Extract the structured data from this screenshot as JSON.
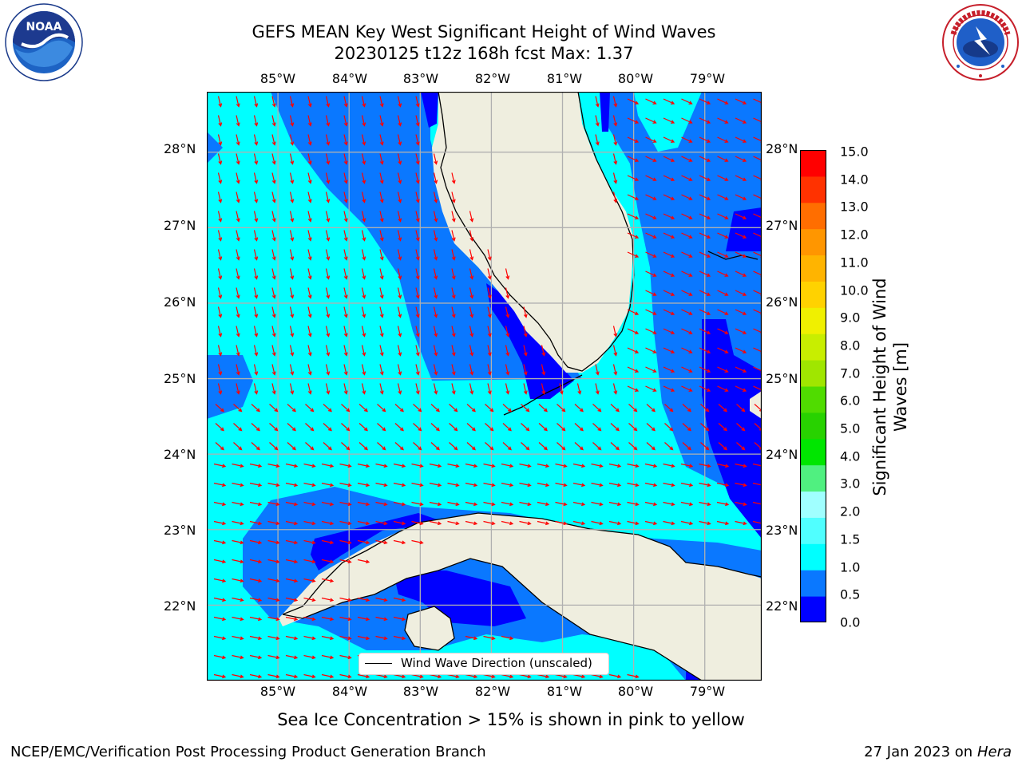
{
  "title": {
    "line1": "GEFS MEAN Key West Significant Height of Wind Waves",
    "line2": "20230125 t12z 168h fcst   Max: 1.37"
  },
  "logos": {
    "left": {
      "name": "noaa-logo",
      "text": "NOAA",
      "ring_text": "NATIONAL OCEANIC AND ATMOSPHERIC ADMINISTRATION · U.S. DEPARTMENT OF COMMERCE"
    },
    "right": {
      "name": "nws-logo",
      "ring_text": "NATIONAL WEATHER SERVICE"
    }
  },
  "axes": {
    "lon_labels": [
      "85°W",
      "84°W",
      "83°W",
      "82°W",
      "81°W",
      "80°W",
      "79°W"
    ],
    "lat_labels": [
      "28°N",
      "27°N",
      "26°N",
      "25°N",
      "24°N",
      "23°N",
      "22°N"
    ],
    "lon_range": [
      -86.0,
      -78.2
    ],
    "lat_range": [
      21.0,
      28.8
    ]
  },
  "legend": {
    "label": "Wind Wave Direction (unscaled)",
    "line_color": "#000000"
  },
  "colorbar": {
    "label_line1": "Significant Height of Wind",
    "label_line2": "Waves [m]",
    "ticks": [
      "15.0",
      "14.0",
      "13.0",
      "12.0",
      "11.0",
      "10.0",
      "9.0",
      "8.0",
      "7.0",
      "6.0",
      "5.0",
      "4.0",
      "3.0",
      "2.0",
      "1.5",
      "1.0",
      "0.5",
      "0.0"
    ],
    "levels": [
      0,
      0.5,
      1,
      1.5,
      2,
      3,
      4,
      5,
      6,
      7,
      8,
      9,
      10,
      11,
      12,
      13,
      14,
      15
    ],
    "colors": [
      "#0000ff",
      "#0a78ff",
      "#00ffff",
      "#50ffff",
      "#a0ffff",
      "#50f080",
      "#00e600",
      "#28d200",
      "#50dc00",
      "#a0e600",
      "#c8ee00",
      "#f0f000",
      "#ffd200",
      "#ffb400",
      "#ff9600",
      "#ff6e00",
      "#ff3200",
      "#ff0000"
    ]
  },
  "map_colors": {
    "land": "#efeedf",
    "very_shallow": "#0000ff",
    "low": "#0a78ff",
    "mid": "#00ffff",
    "arrow": "#ff0000",
    "grid": "#b0b0b0",
    "coast": "#000000"
  },
  "caption": "Sea Ice Concentration > 15% is shown in pink to yellow",
  "footer": {
    "left": "NCEP/EMC/Verification Post Processing Product Generation Branch",
    "right_prefix": "27 Jan 2023 on ",
    "right_host": "Hera"
  }
}
